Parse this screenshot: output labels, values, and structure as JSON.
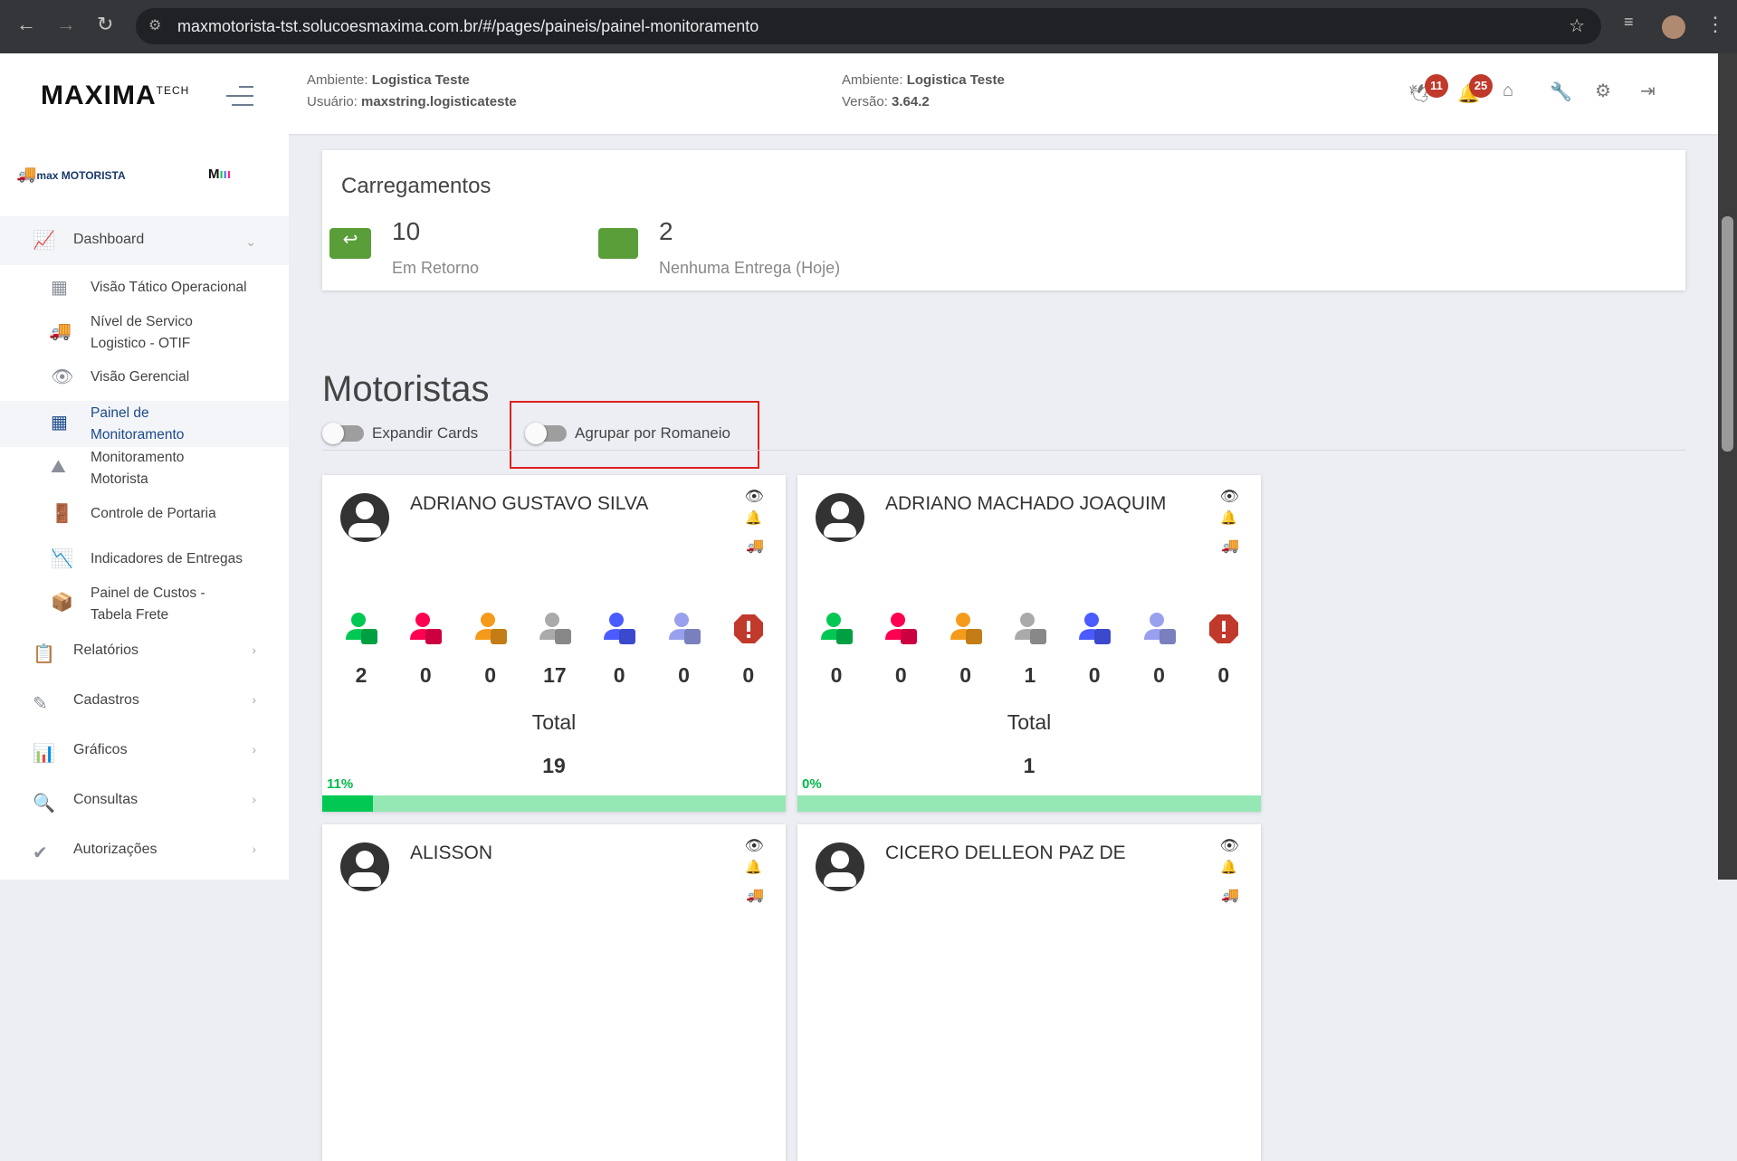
{
  "browser": {
    "url": "maxmotorista-tst.solucoesmaxima.com.br/#/pages/paineis/painel-monitoramento"
  },
  "header": {
    "logo": "MAXIMA TECH",
    "env_label": "Ambiente:",
    "env_value": "Logistica Teste",
    "user_label": "Usuário:",
    "user_value": "maxstring.logisticateste",
    "env2_label": "Ambiente:",
    "env2_value": "Logistica Teste",
    "version_label": "Versão:",
    "version_value": "3.64.2",
    "badge_pigeon": "11",
    "badge_bell": "25"
  },
  "sidebar": {
    "logo": "max MOTORISTA",
    "menu": [
      {
        "label": "Dashboard",
        "icon": "presentation-chart-icon"
      },
      {
        "label": "Relatórios",
        "icon": "clipboard-icon"
      },
      {
        "label": "Cadastros",
        "icon": "pencil-icon"
      },
      {
        "label": "Gráficos",
        "icon": "bar-chart-icon"
      },
      {
        "label": "Consultas",
        "icon": "search-icon"
      },
      {
        "label": "Autorizações",
        "icon": "double-check-icon"
      }
    ],
    "sub": [
      {
        "label": "Visão Tático Operacional",
        "icon": "building-icon"
      },
      {
        "label": "Nível de Servico Logistico - OTIF",
        "icon": "truck-icon"
      },
      {
        "label": "Visão Gerencial",
        "icon": "eye-icon"
      },
      {
        "label": "Painel de Monitoramento",
        "icon": "grid-icon"
      },
      {
        "label": "Monitoramento Motorista",
        "icon": "road-icon"
      },
      {
        "label": "Controle de Portaria",
        "icon": "door-icon"
      },
      {
        "label": "Indicadores de Entregas",
        "icon": "line-chart-icon"
      },
      {
        "label": "Painel de Custos - Tabela Frete",
        "icon": "dolly-icon"
      }
    ]
  },
  "carregamentos": {
    "title": "Carregamentos",
    "items": [
      {
        "value": "10",
        "label": "Em Retorno"
      },
      {
        "value": "2",
        "label": "Nenhuma Entrega (Hoje)"
      }
    ]
  },
  "motoristas": {
    "title": "Motoristas",
    "toggle_expand": "Expandir Cards",
    "toggle_group": "Agrupar por Romaneio",
    "total_label": "Total",
    "status_colors": [
      "#00c853",
      "#ff0050",
      "#f59b1b",
      "#aaaaaa",
      "#4a5cff",
      "#99a0ee",
      "#c0392b"
    ],
    "cards": [
      {
        "name": "ADRIANO GUSTAVO SILVA",
        "counts": [
          "2",
          "0",
          "0",
          "17",
          "0",
          "0",
          "0"
        ],
        "total": "19",
        "percent": "11%",
        "progress": 11
      },
      {
        "name": "ADRIANO MACHADO JOAQUIM",
        "counts": [
          "0",
          "0",
          "0",
          "1",
          "0",
          "0",
          "0"
        ],
        "total": "1",
        "percent": "0%",
        "progress": 0
      },
      {
        "name": "ALISSON"
      },
      {
        "name": "CICERO DELLEON PAZ DE"
      }
    ]
  }
}
